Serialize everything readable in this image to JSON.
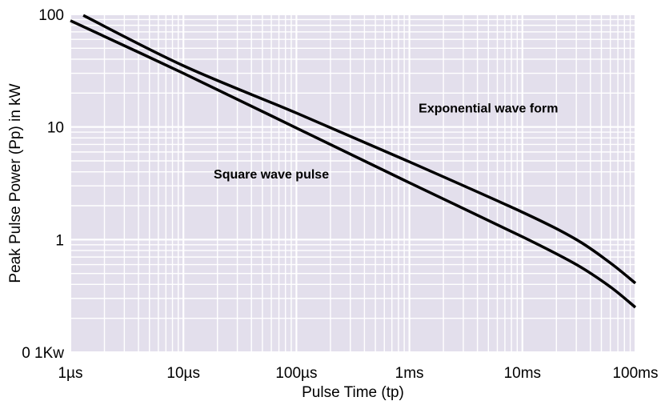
{
  "chart_data": {
    "type": "line",
    "xlabel": "Pulse Time (tp)",
    "ylabel": "Peak Pulse Power (Pp) in kW",
    "x_scale": "log",
    "y_scale": "log",
    "xlim": [
      1e-06,
      0.1
    ],
    "ylim": [
      0.1,
      100
    ],
    "x_ticks": [
      {
        "value": 1e-06,
        "label": "1µs"
      },
      {
        "value": 1e-05,
        "label": "10µs"
      },
      {
        "value": 0.0001,
        "label": "100µs"
      },
      {
        "value": 0.001,
        "label": "1ms"
      },
      {
        "value": 0.01,
        "label": "10ms"
      },
      {
        "value": 0.1,
        "label": "100ms"
      }
    ],
    "y_ticks": [
      {
        "value": 0.1,
        "label": "0 1Kw"
      },
      {
        "value": 1,
        "label": "1"
      },
      {
        "value": 10,
        "label": "10"
      },
      {
        "value": 100,
        "label": "100"
      }
    ],
    "grid": true,
    "colors": {
      "plot_background": "#e3dfec",
      "grid": "#ffffff",
      "line": "#000000"
    },
    "series": [
      {
        "points": [
          [
            1.3e-06,
            98
          ],
          [
            1e-05,
            35
          ],
          [
            0.0001,
            13.3
          ],
          [
            0.001,
            4.9
          ],
          [
            0.01,
            1.75
          ],
          [
            0.03,
            1.0
          ],
          [
            0.06,
            0.62
          ],
          [
            0.1,
            0.41
          ]
        ]
      },
      {
        "points": [
          [
            1e-06,
            88
          ],
          [
            1e-05,
            30
          ],
          [
            0.0001,
            9.8
          ],
          [
            0.001,
            3.2
          ],
          [
            0.01,
            1.06
          ],
          [
            0.03,
            0.6
          ],
          [
            0.06,
            0.38
          ],
          [
            0.1,
            0.25
          ]
        ]
      }
    ],
    "annotations": [
      {
        "text": "Exponential wave form",
        "x": 0.005,
        "y": 13.5
      },
      {
        "text": "Square wave pulse",
        "x": 6e-05,
        "y": 3.5
      }
    ]
  }
}
